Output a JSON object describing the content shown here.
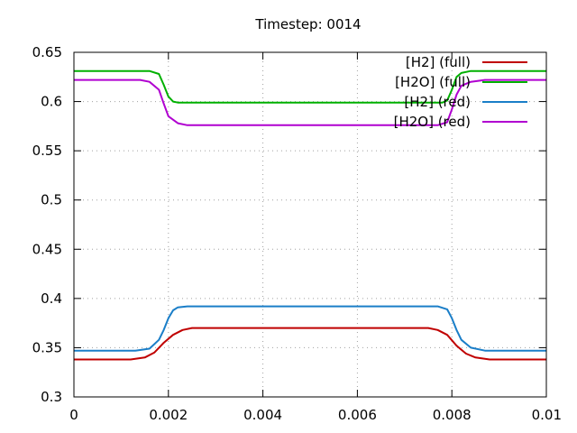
{
  "chart_data": {
    "type": "line",
    "title": "Timestep: 0014",
    "xlabel": "",
    "ylabel": "",
    "xlim": [
      0,
      0.01
    ],
    "ylim": [
      0.3,
      0.65
    ],
    "x_ticks": [
      {
        "value": 0,
        "label": "0"
      },
      {
        "value": 0.002,
        "label": "0.002"
      },
      {
        "value": 0.004,
        "label": "0.004"
      },
      {
        "value": 0.006,
        "label": "0.006"
      },
      {
        "value": 0.008,
        "label": "0.008"
      },
      {
        "value": 0.01,
        "label": "0.01"
      }
    ],
    "y_ticks": [
      {
        "value": 0.3,
        "label": "0.3"
      },
      {
        "value": 0.35,
        "label": "0.35"
      },
      {
        "value": 0.4,
        "label": "0.4"
      },
      {
        "value": 0.45,
        "label": "0.45"
      },
      {
        "value": 0.5,
        "label": "0.5"
      },
      {
        "value": 0.55,
        "label": "0.55"
      },
      {
        "value": 0.6,
        "label": "0.6"
      },
      {
        "value": 0.65,
        "label": "0.65"
      }
    ],
    "grid": true,
    "legend_position": "top-right",
    "series": [
      {
        "name": "[H2] (full)",
        "color": "#c00000",
        "x": [
          0,
          0.0012,
          0.0015,
          0.0017,
          0.0019,
          0.0021,
          0.0023,
          0.0025,
          0.003,
          0.0075,
          0.0077,
          0.0079,
          0.0081,
          0.0083,
          0.0085,
          0.0088,
          0.01
        ],
        "y": [
          0.338,
          0.338,
          0.34,
          0.345,
          0.355,
          0.363,
          0.368,
          0.37,
          0.37,
          0.37,
          0.368,
          0.363,
          0.352,
          0.344,
          0.34,
          0.338,
          0.338
        ]
      },
      {
        "name": "[H2O] (full)",
        "color": "#00b000",
        "x": [
          0,
          0.0016,
          0.0018,
          0.0019,
          0.002,
          0.0021,
          0.0022,
          0.0025,
          0.0078,
          0.0079,
          0.008,
          0.0081,
          0.0082,
          0.0084,
          0.01
        ],
        "y": [
          0.631,
          0.631,
          0.628,
          0.617,
          0.605,
          0.6,
          0.599,
          0.599,
          0.599,
          0.601,
          0.612,
          0.625,
          0.629,
          0.631,
          0.631
        ]
      },
      {
        "name": "[H2] (red)",
        "color": "#1a7ec8",
        "x": [
          0,
          0.0013,
          0.0016,
          0.0018,
          0.0019,
          0.002,
          0.0021,
          0.0022,
          0.0024,
          0.0077,
          0.0079,
          0.008,
          0.0081,
          0.0082,
          0.0084,
          0.0087,
          0.01
        ],
        "y": [
          0.347,
          0.347,
          0.349,
          0.358,
          0.368,
          0.38,
          0.388,
          0.391,
          0.392,
          0.392,
          0.389,
          0.38,
          0.368,
          0.358,
          0.35,
          0.347,
          0.347
        ]
      },
      {
        "name": "[H2O] (red)",
        "color": "#b000d0",
        "x": [
          0,
          0.0014,
          0.0016,
          0.0018,
          0.0019,
          0.002,
          0.0022,
          0.0024,
          0.0077,
          0.0079,
          0.008,
          0.0081,
          0.0082,
          0.0084,
          0.0087,
          0.01
        ],
        "y": [
          0.622,
          0.622,
          0.62,
          0.612,
          0.598,
          0.585,
          0.578,
          0.576,
          0.576,
          0.579,
          0.592,
          0.607,
          0.616,
          0.62,
          0.622,
          0.622
        ]
      }
    ]
  }
}
